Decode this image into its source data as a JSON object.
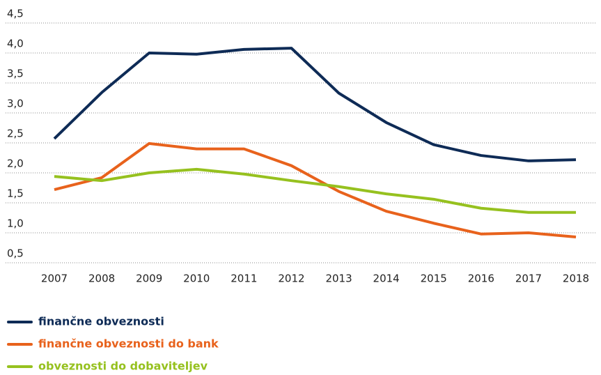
{
  "chart_data": {
    "type": "line",
    "categories": [
      "2007",
      "2008",
      "2009",
      "2010",
      "2011",
      "2012",
      "2013",
      "2014",
      "2015",
      "2016",
      "2017",
      "2018"
    ],
    "series": [
      {
        "name": "finančne obveznosti",
        "color": "#0e2b56",
        "values": [
          2.57,
          3.34,
          4.0,
          3.98,
          4.06,
          4.08,
          3.33,
          2.84,
          2.47,
          2.29,
          2.2,
          2.22
        ]
      },
      {
        "name": "finančne obveznosti do bank",
        "color": "#e8621c",
        "values": [
          1.72,
          1.92,
          2.49,
          2.4,
          2.4,
          2.12,
          1.69,
          1.36,
          1.16,
          0.98,
          1.0,
          0.93
        ]
      },
      {
        "name": "obveznosti do dobaviteljev",
        "color": "#96c11f",
        "values": [
          1.94,
          1.87,
          2.0,
          2.06,
          1.98,
          1.87,
          1.77,
          1.65,
          1.56,
          1.41,
          1.34,
          1.34
        ]
      }
    ],
    "ylim": [
      0.5,
      4.5
    ],
    "yticks": [
      {
        "value": 0.5,
        "label": "0,5"
      },
      {
        "value": 1.0,
        "label": "1,0"
      },
      {
        "value": 1.5,
        "label": "1,5"
      },
      {
        "value": 2.0,
        "label": "2,0"
      },
      {
        "value": 2.5,
        "label": "2,5"
      },
      {
        "value": 3.0,
        "label": "3,0"
      },
      {
        "value": 3.5,
        "label": "3,5"
      },
      {
        "value": 4.0,
        "label": "4,0"
      },
      {
        "value": 4.5,
        "label": "4,5"
      }
    ],
    "grid": true,
    "legend": "bottom"
  }
}
